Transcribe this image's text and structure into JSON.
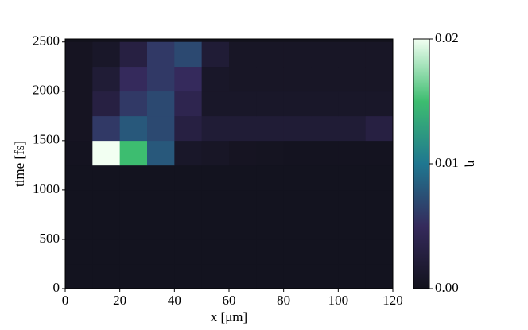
{
  "chart_data": {
    "type": "heatmap",
    "x_label": "x [μm]",
    "y_label": "time [fs]",
    "colorbar_label": "η",
    "x": [
      5,
      15,
      25,
      35,
      45,
      55,
      65,
      75,
      85,
      95,
      105,
      115
    ],
    "y": [
      125,
      375,
      625,
      875,
      1125,
      1375,
      1625,
      1875,
      2125,
      2375
    ],
    "z": [
      [
        0.0002,
        0.0002,
        0.0002,
        0.0002,
        0.0002,
        0.0002,
        0.0002,
        0.0002,
        0.0002,
        0.0002,
        0.0002,
        0.0002
      ],
      [
        0.0002,
        0.0002,
        0.0002,
        0.0002,
        0.0002,
        0.0002,
        0.0002,
        0.0002,
        0.0002,
        0.0002,
        0.0002,
        0.0002
      ],
      [
        0.0002,
        0.0002,
        0.0002,
        0.0002,
        0.0002,
        0.0002,
        0.0002,
        0.0002,
        0.0002,
        0.0002,
        0.0002,
        0.0002
      ],
      [
        0.0002,
        0.0002,
        0.0002,
        0.0002,
        0.0002,
        0.0002,
        0.0002,
        0.0002,
        0.0002,
        0.0002,
        0.0002,
        0.0002
      ],
      [
        0.0002,
        0.0002,
        0.0002,
        0.0002,
        0.0002,
        0.0002,
        0.0002,
        0.0002,
        0.0002,
        0.0002,
        0.0002,
        0.0002
      ],
      [
        0.0003,
        0.02,
        0.015,
        0.008,
        0.001,
        0.0008,
        0.0005,
        0.0004,
        0.0003,
        0.0003,
        0.0003,
        0.0003
      ],
      [
        0.0005,
        0.006,
        0.008,
        0.007,
        0.003,
        0.002,
        0.002,
        0.002,
        0.002,
        0.002,
        0.002,
        0.003
      ],
      [
        0.0005,
        0.003,
        0.006,
        0.007,
        0.004,
        0.001,
        0.001,
        0.001,
        0.001,
        0.001,
        0.001,
        0.001
      ],
      [
        0.0005,
        0.002,
        0.005,
        0.006,
        0.005,
        0.001,
        0.0008,
        0.0008,
        0.0008,
        0.0008,
        0.0008,
        0.0008
      ],
      [
        0.0005,
        0.001,
        0.003,
        0.006,
        0.007,
        0.002,
        0.0008,
        0.0008,
        0.0008,
        0.0008,
        0.0008,
        0.0008
      ]
    ],
    "x_step": 10,
    "y_step": 250,
    "xlim": [
      0,
      120
    ],
    "ylim": [
      0,
      2530
    ],
    "xticks": [
      0,
      20,
      40,
      60,
      80,
      100,
      120
    ],
    "yticks": [
      0,
      500,
      1000,
      1500,
      2000,
      2500
    ],
    "zlim": [
      0,
      0.02
    ],
    "zticks": [
      {
        "value": 0,
        "label": "0.00"
      },
      {
        "value": 0.01,
        "label": "0.01"
      },
      {
        "value": 0.02,
        "label": "0.02"
      }
    ],
    "colormap": [
      "#12121c",
      "#352a5c",
      "#1f7790",
      "#3dbd70",
      "#f2fff2"
    ]
  }
}
